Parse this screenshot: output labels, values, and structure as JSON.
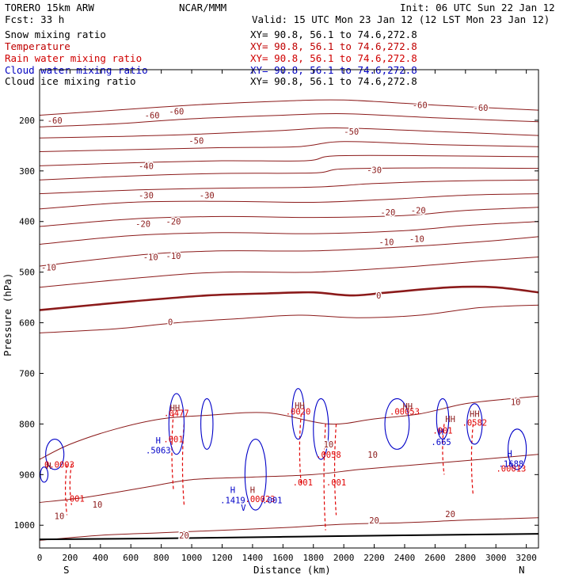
{
  "header": {
    "model": "TORERO  15km ARW",
    "center": "NCAR/MMM",
    "init": "Init: 06 UTC Sun 22 Jan 12",
    "fcst": "Fcst:   33 h",
    "valid": "Valid: 15 UTC Mon 23 Jan 12 (12 LST Mon 23 Jan 12)"
  },
  "legend": [
    {
      "name": "Snow mixing ratio",
      "xy": "XY=  90.8, 56.1 to  74.6,272.8",
      "color": "#000000"
    },
    {
      "name": "Temperature",
      "xy": "XY=  90.8, 56.1 to  74.6,272.8",
      "color": "#c00000"
    },
    {
      "name": "Rain water mixing ratio",
      "xy": "XY=  90.8, 56.1 to  74.6,272.8",
      "color": "#d00000"
    },
    {
      "name": "Cloud water mixing ratio",
      "xy": "XY=  90.8, 56.1 to  74.6,272.8",
      "color": "#0000c0"
    },
    {
      "name": "Cloud ice mixing ratio",
      "xy": "XY=  90.8, 56.1 to  74.6,272.8",
      "color": "#000000"
    }
  ],
  "chart_data": {
    "type": "contour",
    "xlabel": "Distance (km)",
    "ylabel": "Pressure (hPa)",
    "xlim": [
      0,
      3280
    ],
    "ylim": [
      1045,
      100
    ],
    "x_ticks": [
      0,
      200,
      400,
      600,
      800,
      1000,
      1200,
      1400,
      1600,
      1800,
      2000,
      2200,
      2400,
      2600,
      2800,
      3000,
      3200
    ],
    "y_ticks": [
      200,
      300,
      400,
      500,
      600,
      700,
      800,
      900,
      1000
    ],
    "x_end_labels": {
      "left": "S",
      "right": "N"
    },
    "colors": {
      "temperature": "#8b1a1a",
      "rain": "#e00000",
      "cloud_water": "#0000c8",
      "frame": "#000000"
    },
    "temperature_levels": [
      -60,
      -55,
      -50,
      -45,
      -40,
      -35,
      -30,
      -25,
      -20,
      -15,
      -10,
      -5,
      0,
      5,
      10,
      15,
      20
    ],
    "temperature_contours": [
      {
        "level": -60,
        "points": [
          [
            0,
            190
          ],
          [
            400,
            182
          ],
          [
            1000,
            170
          ],
          [
            1600,
            162
          ],
          [
            2000,
            160
          ],
          [
            2600,
            170
          ],
          [
            3280,
            180
          ]
        ]
      },
      {
        "level": -55,
        "points": [
          [
            0,
            213
          ],
          [
            500,
            207
          ],
          [
            1000,
            197
          ],
          [
            1600,
            190
          ],
          [
            2000,
            187
          ],
          [
            2600,
            195
          ],
          [
            3280,
            203
          ]
        ]
      },
      {
        "level": -50,
        "points": [
          [
            0,
            235
          ],
          [
            500,
            232
          ],
          [
            1000,
            228
          ],
          [
            1600,
            220
          ],
          [
            1950,
            215
          ],
          [
            2600,
            222
          ],
          [
            3280,
            230
          ]
        ]
      },
      {
        "level": -45,
        "points": [
          [
            0,
            262
          ],
          [
            600,
            258
          ],
          [
            1200,
            254
          ],
          [
            1700,
            252
          ],
          [
            2000,
            242
          ],
          [
            2600,
            248
          ],
          [
            3280,
            252
          ]
        ]
      },
      {
        "level": -40,
        "points": [
          [
            0,
            290
          ],
          [
            600,
            284
          ],
          [
            1200,
            280
          ],
          [
            1750,
            280
          ],
          [
            1950,
            270
          ],
          [
            2600,
            270
          ],
          [
            3280,
            272
          ]
        ]
      },
      {
        "level": -35,
        "points": [
          [
            0,
            318
          ],
          [
            600,
            310
          ],
          [
            1200,
            305
          ],
          [
            1800,
            304
          ],
          [
            2000,
            296
          ],
          [
            2600,
            294
          ],
          [
            3280,
            295
          ]
        ]
      },
      {
        "level": -30,
        "points": [
          [
            0,
            345
          ],
          [
            600,
            338
          ],
          [
            1200,
            334
          ],
          [
            1800,
            332
          ],
          [
            2200,
            325
          ],
          [
            2700,
            320
          ],
          [
            3280,
            318
          ]
        ]
      },
      {
        "level": -25,
        "points": [
          [
            0,
            375
          ],
          [
            600,
            362
          ],
          [
            1200,
            360
          ],
          [
            1800,
            362
          ],
          [
            2300,
            356
          ],
          [
            2800,
            348
          ],
          [
            3280,
            345
          ]
        ]
      },
      {
        "level": -20,
        "points": [
          [
            0,
            410
          ],
          [
            600,
            395
          ],
          [
            1200,
            390
          ],
          [
            1800,
            392
          ],
          [
            2400,
            388
          ],
          [
            2800,
            378
          ],
          [
            3280,
            372
          ]
        ]
      },
      {
        "level": -15,
        "points": [
          [
            0,
            445
          ],
          [
            600,
            428
          ],
          [
            1200,
            422
          ],
          [
            1800,
            424
          ],
          [
            2400,
            418
          ],
          [
            2800,
            408
          ],
          [
            3280,
            400
          ]
        ]
      },
      {
        "level": -10,
        "points": [
          [
            0,
            488
          ],
          [
            700,
            465
          ],
          [
            1200,
            458
          ],
          [
            1800,
            458
          ],
          [
            2400,
            450
          ],
          [
            2900,
            440
          ],
          [
            3280,
            430
          ]
        ]
      },
      {
        "level": -5,
        "points": [
          [
            0,
            530
          ],
          [
            700,
            510
          ],
          [
            1200,
            500
          ],
          [
            1800,
            500
          ],
          [
            2400,
            490
          ],
          [
            2900,
            478
          ],
          [
            3280,
            470
          ]
        ]
      },
      {
        "level": 0,
        "points": [
          [
            0,
            575
          ],
          [
            600,
            558
          ],
          [
            1100,
            546
          ],
          [
            1500,
            542
          ],
          [
            1800,
            540
          ],
          [
            2050,
            546
          ],
          [
            2300,
            540
          ],
          [
            2700,
            530
          ],
          [
            3000,
            530
          ],
          [
            3280,
            540
          ]
        ]
      },
      {
        "level": 5,
        "points": [
          [
            0,
            620
          ],
          [
            500,
            612
          ],
          [
            900,
            600
          ],
          [
            1300,
            592
          ],
          [
            1700,
            585
          ],
          [
            2100,
            590
          ],
          [
            2500,
            585
          ],
          [
            2900,
            570
          ],
          [
            3280,
            565
          ]
        ]
      },
      {
        "level": 10,
        "points": [
          [
            0,
            870
          ],
          [
            200,
            840
          ],
          [
            500,
            810
          ],
          [
            800,
            790
          ],
          [
            1100,
            783
          ],
          [
            1500,
            778
          ],
          [
            1900,
            800
          ],
          [
            2200,
            790
          ],
          [
            2500,
            780
          ],
          [
            2800,
            760
          ],
          [
            3100,
            750
          ],
          [
            3280,
            745
          ]
        ]
      },
      {
        "level": 15,
        "points": [
          [
            0,
            955
          ],
          [
            300,
            945
          ],
          [
            700,
            925
          ],
          [
            1000,
            910
          ],
          [
            1400,
            905
          ],
          [
            1800,
            900
          ],
          [
            2100,
            890
          ],
          [
            2500,
            880
          ],
          [
            2900,
            870
          ],
          [
            3280,
            860
          ]
        ]
      },
      {
        "level": 20,
        "points": [
          [
            0,
            1030
          ],
          [
            400,
            1020
          ],
          [
            800,
            1015
          ],
          [
            1200,
            1010
          ],
          [
            1600,
            1005
          ],
          [
            2000,
            998
          ],
          [
            2400,
            995
          ],
          [
            2800,
            990
          ],
          [
            3280,
            985
          ]
        ]
      }
    ],
    "temperature_labels": [
      {
        "x": 100,
        "y": 200,
        "text": "-60"
      },
      {
        "x": 740,
        "y": 190,
        "text": "-60"
      },
      {
        "x": 900,
        "y": 182,
        "text": "-60"
      },
      {
        "x": 2500,
        "y": 170,
        "text": "-60"
      },
      {
        "x": 2900,
        "y": 175,
        "text": "-60"
      },
      {
        "x": 1030,
        "y": 240,
        "text": "-50"
      },
      {
        "x": 2050,
        "y": 222,
        "text": "-50"
      },
      {
        "x": 700,
        "y": 290,
        "text": "-40"
      },
      {
        "x": 2200,
        "y": 298,
        "text": "-30"
      },
      {
        "x": 700,
        "y": 348,
        "text": "-30"
      },
      {
        "x": 1100,
        "y": 348,
        "text": "-30"
      },
      {
        "x": 680,
        "y": 404,
        "text": "-20"
      },
      {
        "x": 880,
        "y": 400,
        "text": "-20"
      },
      {
        "x": 2290,
        "y": 382,
        "text": "-20"
      },
      {
        "x": 2490,
        "y": 378,
        "text": "-20"
      },
      {
        "x": 730,
        "y": 470,
        "text": "-10"
      },
      {
        "x": 880,
        "y": 468,
        "text": "-10"
      },
      {
        "x": 2280,
        "y": 440,
        "text": "-10"
      },
      {
        "x": 2480,
        "y": 434,
        "text": "-10"
      },
      {
        "x": 60,
        "y": 490,
        "text": "-10"
      },
      {
        "x": 860,
        "y": 598,
        "text": "0"
      },
      {
        "x": 2230,
        "y": 546,
        "text": "0"
      },
      {
        "x": 3130,
        "y": 756,
        "text": "10"
      },
      {
        "x": 2190,
        "y": 860,
        "text": "10"
      },
      {
        "x": 380,
        "y": 959,
        "text": "10"
      },
      {
        "x": 130,
        "y": 982,
        "text": "10"
      },
      {
        "x": 1900,
        "y": 840,
        "text": "10"
      },
      {
        "x": 2200,
        "y": 990,
        "text": "20"
      },
      {
        "x": 2700,
        "y": 978,
        "text": "20"
      },
      {
        "x": 950,
        "y": 1020,
        "text": "20"
      }
    ],
    "rain_labels": [
      {
        "x": 130,
        "y": 880,
        "text": "0.0003"
      },
      {
        "x": 900,
        "y": 778,
        "text": ".0477"
      },
      {
        "x": 880,
        "y": 830,
        "text": ".001"
      },
      {
        "x": 1700,
        "y": 775,
        "text": ".0020"
      },
      {
        "x": 1900,
        "y": 860,
        "text": ".0058"
      },
      {
        "x": 1730,
        "y": 915,
        "text": ".001"
      },
      {
        "x": 1950,
        "y": 915,
        "text": ".001"
      },
      {
        "x": 2400,
        "y": 775,
        "text": ".00053"
      },
      {
        "x": 2650,
        "y": 813,
        "text": ".001"
      },
      {
        "x": 2860,
        "y": 797,
        "text": ".0582"
      },
      {
        "x": 3100,
        "y": 888,
        "text": ".00013"
      },
      {
        "x": 1450,
        "y": 948,
        "text": ".00023"
      },
      {
        "x": 230,
        "y": 947,
        "text": ".001"
      }
    ],
    "cloud_water_labels": [
      {
        "x": 780,
        "y": 832,
        "text": "H"
      },
      {
        "x": 780,
        "y": 852,
        "text": ".5063"
      },
      {
        "x": 1270,
        "y": 930,
        "text": "H"
      },
      {
        "x": 1270,
        "y": 950,
        "text": ".1419"
      },
      {
        "x": 1340,
        "y": 965,
        "text": "V"
      },
      {
        "x": 1530,
        "y": 950,
        "text": ".001"
      },
      {
        "x": 2640,
        "y": 815,
        "text": "H"
      },
      {
        "x": 2640,
        "y": 835,
        "text": ".665"
      },
      {
        "x": 3090,
        "y": 858,
        "text": "H"
      },
      {
        "x": 3100,
        "y": 878,
        "text": ".1688"
      }
    ],
    "highs": [
      {
        "x": 890,
        "y": 768,
        "text": "HH"
      },
      {
        "x": 1710,
        "y": 763,
        "text": "HH"
      },
      {
        "x": 2420,
        "y": 765,
        "text": "HH"
      },
      {
        "x": 2860,
        "y": 780,
        "text": "HH"
      },
      {
        "x": 2700,
        "y": 790,
        "text": "HH"
      },
      {
        "x": 1400,
        "y": 930,
        "text": "H"
      },
      {
        "x": 60,
        "y": 882,
        "text": "H"
      }
    ],
    "terrain_pressure": [
      [
        0,
        1028
      ],
      [
        800,
        1026
      ],
      [
        1600,
        1023
      ],
      [
        2400,
        1020
      ],
      [
        3280,
        1017
      ]
    ]
  }
}
